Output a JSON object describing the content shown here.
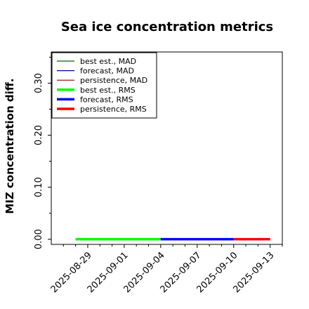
{
  "chart_data": {
    "type": "line",
    "title": "Sea ice concentration metrics",
    "ylabel": "MIZ concentration diff.",
    "xlabel": "",
    "ylim": [
      -0.01,
      0.36
    ],
    "yticks": [
      0.0,
      0.1,
      0.2,
      0.3
    ],
    "yticklabels": [
      "0.00",
      "0.10",
      "0.20",
      "0.30"
    ],
    "xlim": [
      "2025-08-26",
      "2025-09-14"
    ],
    "xticks": [
      "2025-08-29",
      "2025-09-01",
      "2025-09-04",
      "2025-09-07",
      "2025-09-10",
      "2025-09-13"
    ],
    "xticklabels": [
      "2025-08-29",
      "2025-09-01",
      "2025-09-04",
      "2025-09-07",
      "2025-09-10",
      "2025-09-13"
    ],
    "highlighted_tick": "2025-09-04",
    "highlight_color": "#228B22",
    "legend_position": "top-left",
    "series": [
      {
        "name": "best est., MAD",
        "color": "#006400",
        "width": "thin",
        "x": [
          "2025-08-28",
          "2025-09-04"
        ],
        "y": [
          0.0,
          0.0
        ]
      },
      {
        "name": "forecast,  MAD",
        "color": "#00008b",
        "width": "thin",
        "x": [
          "2025-09-04",
          "2025-09-10"
        ],
        "y": [
          0.0,
          0.0
        ]
      },
      {
        "name": "persistence, MAD",
        "color": "#8b0000",
        "width": "thin",
        "x": [
          "2025-09-04",
          "2025-09-13"
        ],
        "y": [
          0.0,
          0.0
        ]
      },
      {
        "name": "best est., RMS",
        "color": "#00ff00",
        "width": "thick",
        "x": [
          "2025-08-28",
          "2025-09-04"
        ],
        "y": [
          0.0,
          0.0
        ]
      },
      {
        "name": "forecast,  RMS",
        "color": "#0000ff",
        "width": "thick",
        "x": [
          "2025-09-04",
          "2025-09-10"
        ],
        "y": [
          0.0,
          0.0
        ]
      },
      {
        "name": "persistence, RMS",
        "color": "#ff0000",
        "width": "thick",
        "x": [
          "2025-09-10",
          "2025-09-13"
        ],
        "y": [
          0.0,
          0.0
        ]
      }
    ]
  }
}
